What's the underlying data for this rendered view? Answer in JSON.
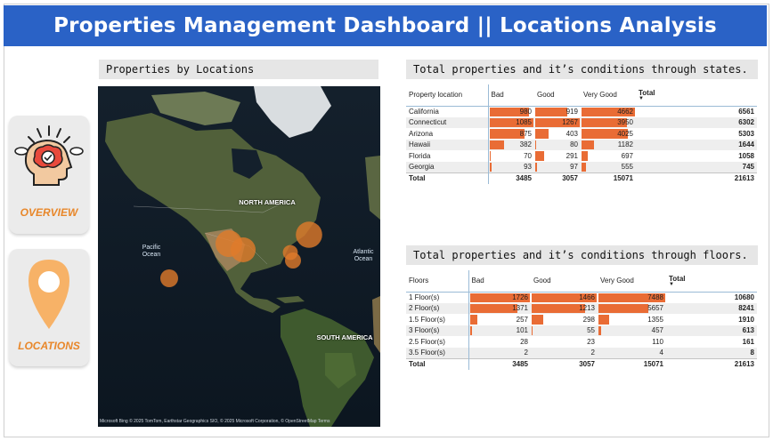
{
  "header": {
    "title": "Properties Management Dashboard || Locations Analysis"
  },
  "nav": {
    "overview_label": "OVERVIEW",
    "locations_label": "LOCATIONS"
  },
  "map": {
    "title": "Properties by Locations",
    "north_america": "NORTH AMERICA",
    "south_america": "SOUTH AMERICA",
    "pacific": "Pacific\nOcean",
    "atlantic": "Atlantic\nOcean",
    "attribution": "Microsoft Bing   © 2025 TomTom, Earthstar Geographics SIO, © 2025 Microsoft Corporation, © OpenStreetMap   Terms",
    "bubble_color": "#e07a2a"
  },
  "states": {
    "title": "Total properties and it’s conditions through states.",
    "headers": [
      "Property location",
      "Bad",
      "Good",
      "Very Good",
      "Total"
    ],
    "rows": [
      {
        "name": "California",
        "bad": 980,
        "good": 919,
        "very_good": 4662,
        "total": 6561
      },
      {
        "name": "Connecticut",
        "bad": 1085,
        "good": 1267,
        "very_good": 3950,
        "total": 6302
      },
      {
        "name": "Arizona",
        "bad": 875,
        "good": 403,
        "very_good": 4025,
        "total": 5303
      },
      {
        "name": "Hawaii",
        "bad": 382,
        "good": 80,
        "very_good": 1182,
        "total": 1644
      },
      {
        "name": "Florida",
        "bad": 70,
        "good": 291,
        "very_good": 697,
        "total": 1058
      },
      {
        "name": "Georgia",
        "bad": 93,
        "good": 97,
        "very_good": 555,
        "total": 745
      }
    ],
    "total": {
      "name": "Total",
      "bad": 3485,
      "good": 3057,
      "very_good": 15071,
      "total": 21613
    }
  },
  "floors": {
    "title": "Total properties and it’s conditions through floors.",
    "headers": [
      "Floors",
      "Bad",
      "Good",
      "Very Good",
      "Total"
    ],
    "rows": [
      {
        "name": "1 Floor(s)",
        "bad": 1726,
        "good": 1466,
        "very_good": 7488,
        "total": 10680
      },
      {
        "name": "2 Floor(s)",
        "bad": 1371,
        "good": 1213,
        "very_good": 5657,
        "total": 8241
      },
      {
        "name": "1.5 Floor(s)",
        "bad": 257,
        "good": 298,
        "very_good": 1355,
        "total": 1910
      },
      {
        "name": "3 Floor(s)",
        "bad": 101,
        "good": 55,
        "very_good": 457,
        "total": 613
      },
      {
        "name": "2.5 Floor(s)",
        "bad": 28,
        "good": 23,
        "very_good": 110,
        "total": 161
      },
      {
        "name": "3.5 Floor(s)",
        "bad": 2,
        "good": 2,
        "very_good": 4,
        "total": 8
      }
    ],
    "total": {
      "name": "Total",
      "bad": 3485,
      "good": 3057,
      "very_good": 15071,
      "total": 21613
    }
  },
  "bar_color": "#e96c35"
}
